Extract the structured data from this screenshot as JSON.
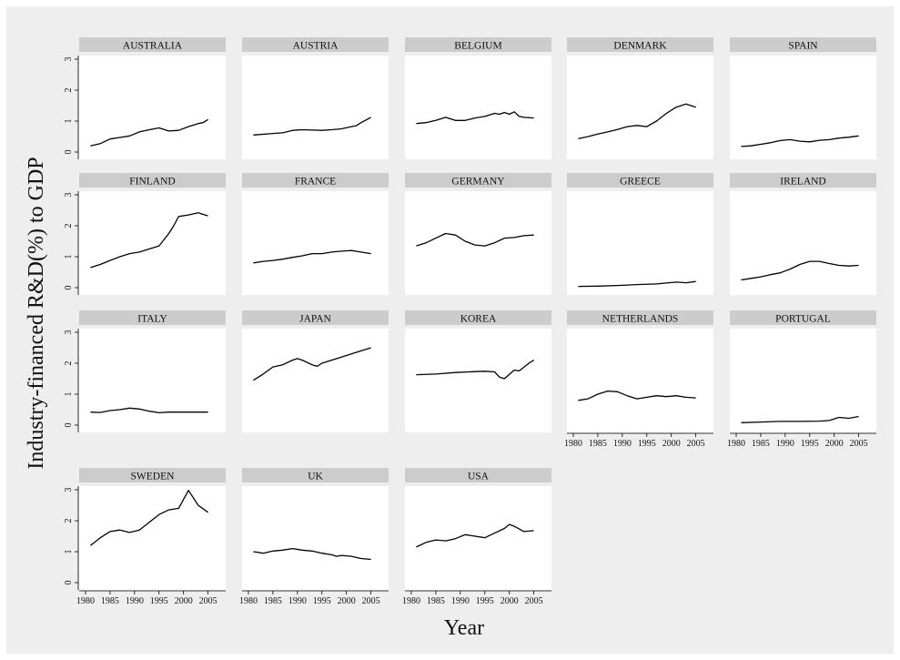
{
  "chart_data": {
    "type": "line",
    "xlabel": "Year",
    "ylabel": "Industry-financed R&D(%) to GDP",
    "xlim": [
      1980,
      2006
    ],
    "ylim": [
      0,
      3
    ],
    "x_ticks": [
      "1980",
      "1985",
      "1990",
      "1995",
      "2000",
      "2005"
    ],
    "y_ticks": [
      "0",
      "1",
      "2",
      "3"
    ],
    "colors": {
      "background": "#eeeeee",
      "panel": "#ffffff",
      "strip": "#cccccc",
      "line": "#000000"
    },
    "panels": [
      {
        "name": "AUSTRALIA",
        "points": [
          [
            1981,
            0.2
          ],
          [
            1983,
            0.27
          ],
          [
            1985,
            0.42
          ],
          [
            1987,
            0.47
          ],
          [
            1989,
            0.52
          ],
          [
            1991,
            0.65
          ],
          [
            1993,
            0.72
          ],
          [
            1995,
            0.78
          ],
          [
            1997,
            0.68
          ],
          [
            1999,
            0.7
          ],
          [
            2001,
            0.82
          ],
          [
            2003,
            0.92
          ],
          [
            2004,
            0.95
          ],
          [
            2005,
            1.05
          ]
        ]
      },
      {
        "name": "AUSTRIA",
        "points": [
          [
            1981,
            0.55
          ],
          [
            1985,
            0.6
          ],
          [
            1987,
            0.62
          ],
          [
            1989,
            0.7
          ],
          [
            1991,
            0.72
          ],
          [
            1993,
            0.71
          ],
          [
            1995,
            0.7
          ],
          [
            1997,
            0.72
          ],
          [
            1999,
            0.75
          ],
          [
            2001,
            0.82
          ],
          [
            2002,
            0.85
          ],
          [
            2003,
            0.95
          ],
          [
            2005,
            1.12
          ]
        ]
      },
      {
        "name": "BELGIUM",
        "points": [
          [
            1981,
            0.92
          ],
          [
            1983,
            0.95
          ],
          [
            1985,
            1.02
          ],
          [
            1987,
            1.12
          ],
          [
            1989,
            1.02
          ],
          [
            1991,
            1.02
          ],
          [
            1993,
            1.1
          ],
          [
            1995,
            1.15
          ],
          [
            1997,
            1.25
          ],
          [
            1998,
            1.22
          ],
          [
            1999,
            1.28
          ],
          [
            2000,
            1.22
          ],
          [
            2001,
            1.3
          ],
          [
            2002,
            1.15
          ],
          [
            2003,
            1.12
          ],
          [
            2005,
            1.1
          ]
        ]
      },
      {
        "name": "DENMARK",
        "points": [
          [
            1981,
            0.43
          ],
          [
            1983,
            0.5
          ],
          [
            1985,
            0.58
          ],
          [
            1987,
            0.65
          ],
          [
            1989,
            0.73
          ],
          [
            1991,
            0.82
          ],
          [
            1993,
            0.86
          ],
          [
            1995,
            0.82
          ],
          [
            1997,
            1.0
          ],
          [
            1999,
            1.25
          ],
          [
            2001,
            1.45
          ],
          [
            2003,
            1.55
          ],
          [
            2005,
            1.45
          ]
        ]
      },
      {
        "name": "SPAIN",
        "points": [
          [
            1981,
            0.18
          ],
          [
            1983,
            0.2
          ],
          [
            1985,
            0.25
          ],
          [
            1987,
            0.3
          ],
          [
            1989,
            0.37
          ],
          [
            1991,
            0.4
          ],
          [
            1993,
            0.35
          ],
          [
            1995,
            0.33
          ],
          [
            1997,
            0.38
          ],
          [
            1999,
            0.4
          ],
          [
            2001,
            0.45
          ],
          [
            2003,
            0.48
          ],
          [
            2005,
            0.52
          ]
        ]
      },
      {
        "name": "FINLAND",
        "points": [
          [
            1981,
            0.65
          ],
          [
            1983,
            0.75
          ],
          [
            1985,
            0.88
          ],
          [
            1987,
            1.0
          ],
          [
            1989,
            1.1
          ],
          [
            1991,
            1.15
          ],
          [
            1993,
            1.25
          ],
          [
            1995,
            1.35
          ],
          [
            1997,
            1.75
          ],
          [
            1998,
            2.0
          ],
          [
            1999,
            2.3
          ],
          [
            2001,
            2.35
          ],
          [
            2003,
            2.42
          ],
          [
            2005,
            2.32
          ]
        ]
      },
      {
        "name": "FRANCE",
        "points": [
          [
            1981,
            0.8
          ],
          [
            1983,
            0.85
          ],
          [
            1985,
            0.88
          ],
          [
            1987,
            0.92
          ],
          [
            1989,
            0.98
          ],
          [
            1991,
            1.03
          ],
          [
            1993,
            1.1
          ],
          [
            1995,
            1.1
          ],
          [
            1997,
            1.15
          ],
          [
            1999,
            1.18
          ],
          [
            2001,
            1.2
          ],
          [
            2003,
            1.15
          ],
          [
            2005,
            1.1
          ]
        ]
      },
      {
        "name": "GERMANY",
        "points": [
          [
            1981,
            1.35
          ],
          [
            1983,
            1.45
          ],
          [
            1985,
            1.6
          ],
          [
            1987,
            1.75
          ],
          [
            1989,
            1.7
          ],
          [
            1991,
            1.5
          ],
          [
            1993,
            1.38
          ],
          [
            1995,
            1.35
          ],
          [
            1997,
            1.45
          ],
          [
            1999,
            1.6
          ],
          [
            2001,
            1.62
          ],
          [
            2003,
            1.68
          ],
          [
            2005,
            1.7
          ]
        ]
      },
      {
        "name": "GREECE",
        "points": [
          [
            1981,
            0.04
          ],
          [
            1985,
            0.05
          ],
          [
            1989,
            0.07
          ],
          [
            1993,
            0.1
          ],
          [
            1997,
            0.12
          ],
          [
            2001,
            0.18
          ],
          [
            2003,
            0.16
          ],
          [
            2005,
            0.2
          ]
        ]
      },
      {
        "name": "IRELAND",
        "points": [
          [
            1981,
            0.25
          ],
          [
            1983,
            0.3
          ],
          [
            1985,
            0.35
          ],
          [
            1987,
            0.42
          ],
          [
            1989,
            0.48
          ],
          [
            1991,
            0.6
          ],
          [
            1993,
            0.75
          ],
          [
            1995,
            0.85
          ],
          [
            1997,
            0.85
          ],
          [
            1999,
            0.78
          ],
          [
            2001,
            0.72
          ],
          [
            2003,
            0.7
          ],
          [
            2005,
            0.72
          ]
        ]
      },
      {
        "name": "ITALY",
        "points": [
          [
            1981,
            0.42
          ],
          [
            1983,
            0.41
          ],
          [
            1985,
            0.47
          ],
          [
            1987,
            0.5
          ],
          [
            1989,
            0.55
          ],
          [
            1991,
            0.52
          ],
          [
            1993,
            0.45
          ],
          [
            1995,
            0.4
          ],
          [
            1997,
            0.42
          ],
          [
            2005,
            0.42
          ]
        ]
      },
      {
        "name": "JAPAN",
        "points": [
          [
            1981,
            1.45
          ],
          [
            1983,
            1.65
          ],
          [
            1985,
            1.88
          ],
          [
            1987,
            1.95
          ],
          [
            1989,
            2.1
          ],
          [
            1990,
            2.15
          ],
          [
            1991,
            2.1
          ],
          [
            1993,
            1.95
          ],
          [
            1994,
            1.9
          ],
          [
            1995,
            2.0
          ],
          [
            1997,
            2.1
          ],
          [
            1999,
            2.2
          ],
          [
            2001,
            2.3
          ],
          [
            2003,
            2.4
          ],
          [
            2005,
            2.5
          ]
        ]
      },
      {
        "name": "KOREA",
        "points": [
          [
            1981,
            1.63
          ],
          [
            1985,
            1.65
          ],
          [
            1989,
            1.7
          ],
          [
            1993,
            1.73
          ],
          [
            1995,
            1.74
          ],
          [
            1997,
            1.72
          ],
          [
            1998,
            1.55
          ],
          [
            1999,
            1.5
          ],
          [
            2001,
            1.78
          ],
          [
            2002,
            1.75
          ],
          [
            2004,
            2.0
          ],
          [
            2005,
            2.1
          ]
        ]
      },
      {
        "name": "NETHERLANDS",
        "points": [
          [
            1981,
            0.8
          ],
          [
            1983,
            0.85
          ],
          [
            1985,
            1.0
          ],
          [
            1987,
            1.1
          ],
          [
            1989,
            1.08
          ],
          [
            1991,
            0.95
          ],
          [
            1993,
            0.85
          ],
          [
            1995,
            0.9
          ],
          [
            1997,
            0.95
          ],
          [
            1999,
            0.92
          ],
          [
            2001,
            0.95
          ],
          [
            2003,
            0.9
          ],
          [
            2005,
            0.88
          ]
        ]
      },
      {
        "name": "PORTUGAL",
        "points": [
          [
            1981,
            0.08
          ],
          [
            1985,
            0.1
          ],
          [
            1989,
            0.12
          ],
          [
            1993,
            0.12
          ],
          [
            1997,
            0.13
          ],
          [
            1999,
            0.15
          ],
          [
            2001,
            0.25
          ],
          [
            2003,
            0.22
          ],
          [
            2005,
            0.28
          ]
        ]
      },
      {
        "name": "SWEDEN",
        "points": [
          [
            1981,
            1.2
          ],
          [
            1983,
            1.45
          ],
          [
            1985,
            1.65
          ],
          [
            1987,
            1.7
          ],
          [
            1989,
            1.62
          ],
          [
            1991,
            1.7
          ],
          [
            1993,
            1.95
          ],
          [
            1995,
            2.2
          ],
          [
            1997,
            2.35
          ],
          [
            1999,
            2.4
          ],
          [
            2001,
            2.98
          ],
          [
            2003,
            2.5
          ],
          [
            2005,
            2.27
          ]
        ]
      },
      {
        "name": "UK",
        "points": [
          [
            1981,
            1.0
          ],
          [
            1983,
            0.95
          ],
          [
            1985,
            1.02
          ],
          [
            1987,
            1.05
          ],
          [
            1989,
            1.1
          ],
          [
            1991,
            1.05
          ],
          [
            1993,
            1.02
          ],
          [
            1995,
            0.95
          ],
          [
            1997,
            0.9
          ],
          [
            1998,
            0.85
          ],
          [
            1999,
            0.88
          ],
          [
            2001,
            0.85
          ],
          [
            2003,
            0.78
          ],
          [
            2005,
            0.75
          ]
        ]
      },
      {
        "name": "USA",
        "points": [
          [
            1981,
            1.15
          ],
          [
            1983,
            1.3
          ],
          [
            1985,
            1.38
          ],
          [
            1987,
            1.35
          ],
          [
            1989,
            1.42
          ],
          [
            1991,
            1.55
          ],
          [
            1993,
            1.5
          ],
          [
            1995,
            1.45
          ],
          [
            1997,
            1.6
          ],
          [
            1999,
            1.75
          ],
          [
            2000,
            1.88
          ],
          [
            2001,
            1.82
          ],
          [
            2003,
            1.65
          ],
          [
            2005,
            1.68
          ]
        ]
      }
    ]
  }
}
